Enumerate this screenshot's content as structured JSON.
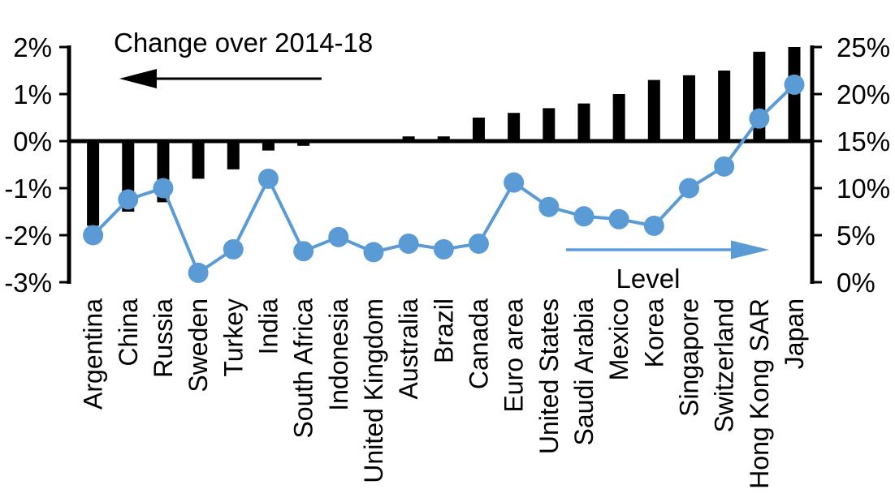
{
  "chart_data": {
    "type": "combo",
    "subtype": "bar + line, dual axis",
    "categories": [
      "Argentina",
      "China",
      "Russia",
      "Sweden",
      "Turkey",
      "India",
      "South Africa",
      "Indonesia",
      "United Kingdom",
      "Australia",
      "Brazil",
      "Canada",
      "Euro area",
      "United States",
      "Saudi Arabia",
      "Mexico",
      "Korea",
      "Singapore",
      "Switzerland",
      "Hong Kong SAR",
      "Japan"
    ],
    "series": [
      {
        "name": "Change over 2014-18",
        "type": "bar",
        "axis": "left",
        "color": "#000000",
        "unit": "%",
        "values": [
          -1.8,
          -1.5,
          -1.3,
          -0.8,
          -0.6,
          -0.2,
          -0.1,
          0.0,
          0.0,
          0.1,
          0.1,
          0.5,
          0.6,
          0.7,
          0.8,
          1.0,
          1.3,
          1.4,
          1.5,
          1.9,
          2.0
        ]
      },
      {
        "name": "Level",
        "type": "line",
        "axis": "right",
        "color": "#5B9BD5",
        "unit": "%",
        "values": [
          5.0,
          8.8,
          10.0,
          1.0,
          3.5,
          11.0,
          3.3,
          4.8,
          3.2,
          4.1,
          3.5,
          4.1,
          10.6,
          8.0,
          7.0,
          6.7,
          6.0,
          10.0,
          12.3,
          17.4,
          21.0
        ]
      }
    ],
    "left_axis": {
      "tick_labels": [
        "2%",
        "1%",
        "0%",
        "-1%",
        "-2%",
        "-3%"
      ],
      "min": -3,
      "max": 2,
      "side": "left"
    },
    "right_axis": {
      "tick_labels": [
        "25%",
        "20%",
        "15%",
        "10%",
        "5%",
        "0%"
      ],
      "min": 0,
      "max": 25,
      "side": "right"
    },
    "annotations": [
      {
        "text": "Change over 2014-18",
        "arrow_direction": "left",
        "color": "#000000"
      },
      {
        "text": "Level",
        "arrow_direction": "right",
        "color": "#5B9BD5"
      }
    ],
    "grid": false,
    "legend_position": "in-plot annotations with arrows",
    "background": "#FFFFFF"
  }
}
